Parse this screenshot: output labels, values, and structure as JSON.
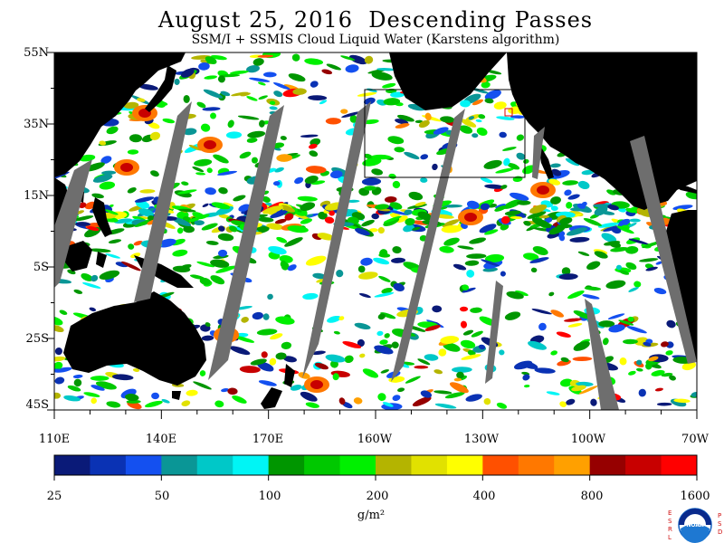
{
  "header": {
    "title": "August 25, 2016  Descending Passes",
    "subtitle": "SSM/I + SSMIS Cloud Liquid Water (Karstens algorithm)"
  },
  "map": {
    "lat_labels": [
      "55N",
      "35N",
      "15N",
      "5S",
      "25S",
      "45S"
    ],
    "lon_labels": [
      "110E",
      "140E",
      "170E",
      "160W",
      "130W",
      "100W",
      "70W"
    ],
    "land_color": "#000000",
    "no_data_color": "#6e6e6e",
    "clear_color": "#ffffff"
  },
  "colorbar": {
    "colors": [
      "#0a1a78",
      "#0a32b4",
      "#1450f0",
      "#0a9696",
      "#00c8c8",
      "#00f5f5",
      "#009600",
      "#00c800",
      "#00f000",
      "#b4b400",
      "#e1e100",
      "#ffff00",
      "#ff5000",
      "#ff7800",
      "#ffa000",
      "#960000",
      "#c80000",
      "#ff0000"
    ],
    "tick_labels": [
      "25",
      "50",
      "100",
      "200",
      "400",
      "800",
      "1600"
    ],
    "unit_label": "g/m²"
  },
  "logo": {
    "side_left": "ESRL",
    "side_right": "PSD",
    "center": "NOAA"
  }
}
